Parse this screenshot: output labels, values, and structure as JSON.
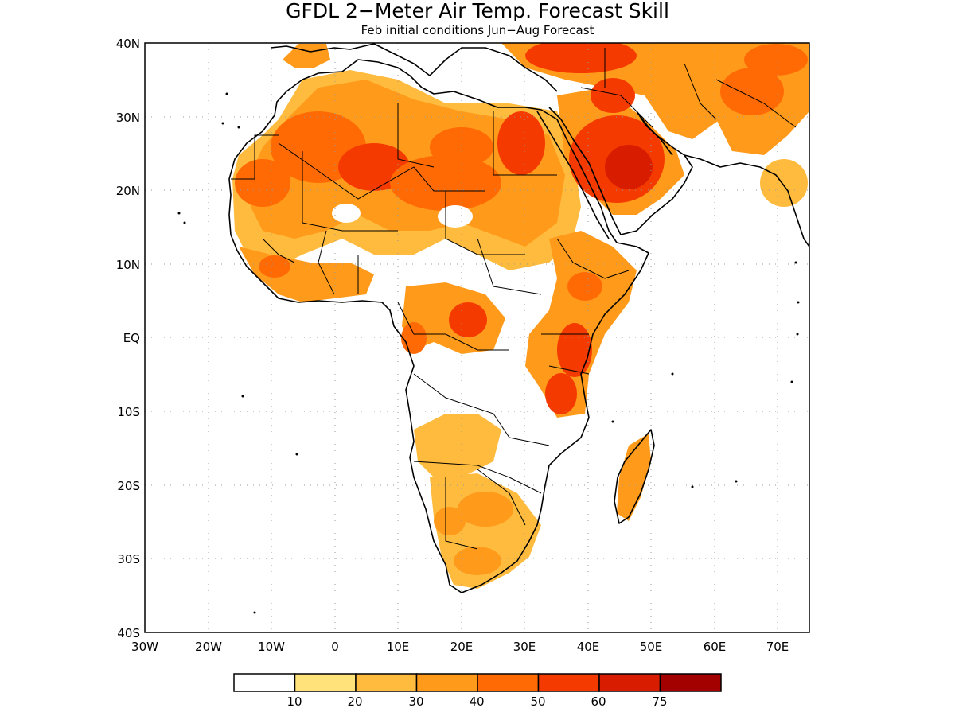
{
  "title": "GFDL 2−Meter Air Temp. Forecast Skill",
  "subtitle": "Feb initial conditions  Jun−Aug Forecast",
  "map": {
    "lon_range": [
      -30,
      75
    ],
    "lat_range": [
      -40,
      40
    ],
    "lat_labels": [
      "40N",
      "30N",
      "20N",
      "10N",
      "EQ",
      "10S",
      "20S",
      "30S",
      "40S"
    ],
    "lon_labels": [
      "30W",
      "20W",
      "10W",
      "0",
      "10E",
      "20E",
      "30E",
      "40E",
      "50E",
      "60E",
      "70E"
    ],
    "grid": "dotted"
  },
  "colorbar": {
    "labels": [
      "10",
      "20",
      "30",
      "40",
      "50",
      "60",
      "75"
    ],
    "colors": [
      "#ffffff",
      "#ffe27a",
      "#ffbb3e",
      "#ff9a1a",
      "#ff6a05",
      "#f53a00",
      "#d81c00",
      "#a30000"
    ]
  }
}
